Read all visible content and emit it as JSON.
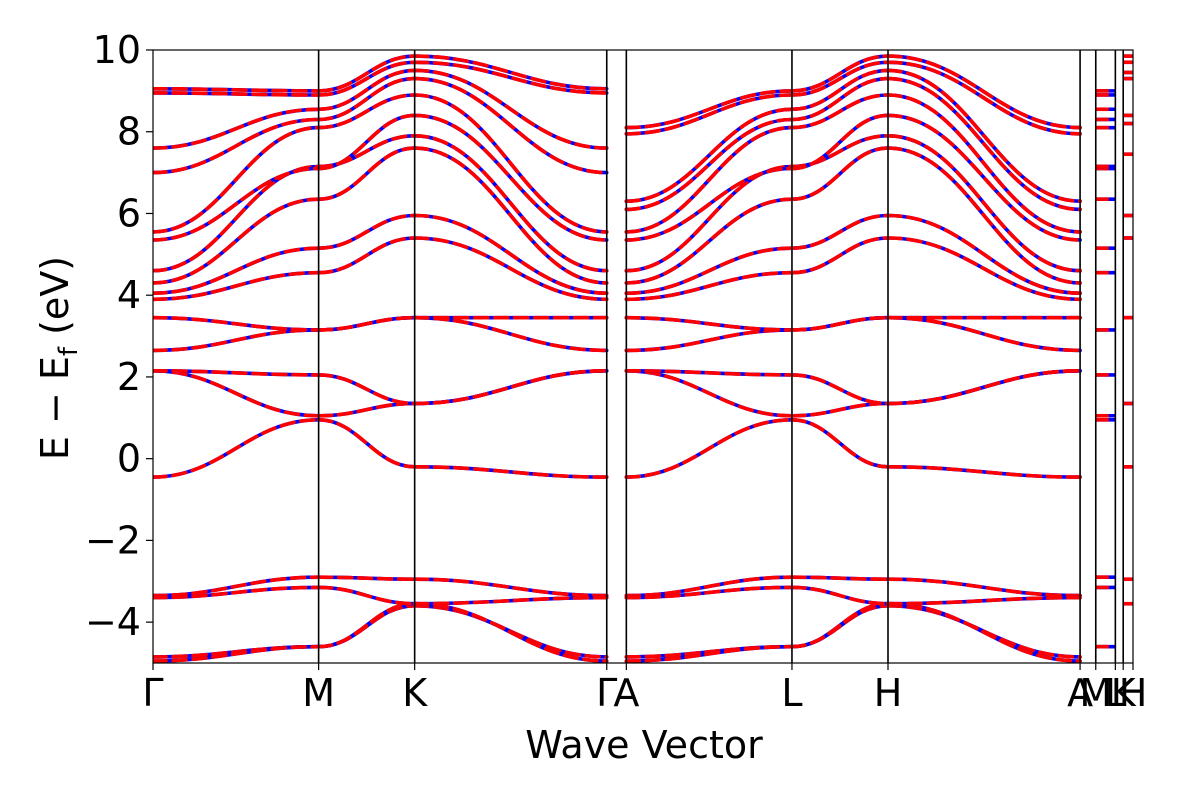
{
  "chart_data": {
    "type": "line",
    "title": "",
    "xlabel": "Wave Vector",
    "ylabel_main": "E − E",
    "ylabel_sub": "f",
    "ylabel_suffix": " (eV)",
    "ylim": [
      -5,
      10
    ],
    "yticks": [
      -4,
      -2,
      0,
      2,
      4,
      6,
      8,
      10
    ],
    "ytick_labels": [
      "−4",
      "−2",
      "0",
      "2",
      "4",
      "6",
      "8",
      "10"
    ],
    "xlim": [
      0,
      10
    ],
    "kpoints": [
      {
        "label": "Γ",
        "x": 0.0
      },
      {
        "label": "M",
        "x": 1.69
      },
      {
        "label": "K",
        "x": 2.67
      },
      {
        "label": "Γ",
        "x": 4.63
      },
      {
        "label": "A",
        "x": 4.83
      },
      {
        "label": "L",
        "x": 6.52
      },
      {
        "label": "H",
        "x": 7.5
      },
      {
        "label": "A",
        "x": 9.46
      },
      {
        "label": "M",
        "x": 9.62
      },
      {
        "label": "L",
        "x": 9.82
      },
      {
        "label": "K",
        "x": 9.9
      },
      {
        "label": "H",
        "x": 10.0
      }
    ],
    "grid": false,
    "legend": "none",
    "series_styles": [
      {
        "name": "Band structure (solid)",
        "color": "#0000ff",
        "dash": "solid"
      },
      {
        "name": "Band structure (dashed)",
        "color": "#ff0000",
        "dash": "dashed"
      }
    ],
    "segments": [
      {
        "from": "Γ",
        "to": "M",
        "x": [
          0.0,
          1.69
        ],
        "bands": [
          [
            -4.85,
            -4.6
          ],
          [
            -4.95,
            -4.6
          ],
          [
            -3.35,
            -2.9
          ],
          [
            -3.4,
            -3.15
          ],
          [
            -0.45,
            0.95
          ],
          [
            2.15,
            1.05
          ],
          [
            2.15,
            2.05
          ],
          [
            2.65,
            3.15
          ],
          [
            3.45,
            3.15
          ],
          [
            3.9,
            4.55
          ],
          [
            4.05,
            5.15
          ],
          [
            4.3,
            6.35
          ],
          [
            4.6,
            7.15
          ],
          [
            5.35,
            7.1
          ],
          [
            5.55,
            8.1
          ],
          [
            7.0,
            8.3
          ],
          [
            7.6,
            8.55
          ],
          [
            8.95,
            8.9
          ],
          [
            9.05,
            9.0
          ]
        ]
      },
      {
        "from": "M",
        "to": "K",
        "x": [
          1.69,
          2.67
        ],
        "bands": [
          [
            -4.6,
            -3.6
          ],
          [
            -4.6,
            -3.55
          ],
          [
            -2.9,
            -2.95
          ],
          [
            -3.15,
            -3.55
          ],
          [
            0.95,
            -0.2
          ],
          [
            1.05,
            1.35
          ],
          [
            2.05,
            1.35
          ],
          [
            3.15,
            3.45
          ],
          [
            3.15,
            3.45
          ],
          [
            4.55,
            5.4
          ],
          [
            5.15,
            5.95
          ],
          [
            6.35,
            7.6
          ],
          [
            7.15,
            7.9
          ],
          [
            7.1,
            8.4
          ],
          [
            8.1,
            8.9
          ],
          [
            8.3,
            9.3
          ],
          [
            8.55,
            9.5
          ],
          [
            8.9,
            9.7
          ],
          [
            9.0,
            9.85
          ]
        ]
      },
      {
        "from": "K",
        "to": "Γ",
        "x": [
          2.67,
          4.63
        ],
        "bands": [
          [
            -3.6,
            -4.85
          ],
          [
            -3.55,
            -4.95
          ],
          [
            -2.95,
            -3.35
          ],
          [
            -3.55,
            -3.4
          ],
          [
            -0.2,
            -0.45
          ],
          [
            1.35,
            2.15
          ],
          [
            1.35,
            2.15
          ],
          [
            3.45,
            2.65
          ],
          [
            3.45,
            3.45
          ],
          [
            5.4,
            3.9
          ],
          [
            5.95,
            4.05
          ],
          [
            7.6,
            4.3
          ],
          [
            7.9,
            4.6
          ],
          [
            8.4,
            5.35
          ],
          [
            8.9,
            5.55
          ],
          [
            9.3,
            7.0
          ],
          [
            9.5,
            7.6
          ],
          [
            9.7,
            8.95
          ],
          [
            9.85,
            9.05
          ]
        ]
      },
      {
        "from": "A",
        "to": "L",
        "x": [
          4.83,
          6.52
        ],
        "bands": [
          [
            -4.85,
            -4.6
          ],
          [
            -4.95,
            -4.6
          ],
          [
            -3.35,
            -2.9
          ],
          [
            -3.4,
            -3.15
          ],
          [
            -0.45,
            0.95
          ],
          [
            2.15,
            1.05
          ],
          [
            2.15,
            2.05
          ],
          [
            2.65,
            3.15
          ],
          [
            3.45,
            3.15
          ],
          [
            3.9,
            4.55
          ],
          [
            4.05,
            5.15
          ],
          [
            4.3,
            6.35
          ],
          [
            4.6,
            7.15
          ],
          [
            5.35,
            7.1
          ],
          [
            5.55,
            8.1
          ],
          [
            6.1,
            8.3
          ],
          [
            6.3,
            8.55
          ],
          [
            7.95,
            8.9
          ],
          [
            8.1,
            9.0
          ]
        ]
      },
      {
        "from": "L",
        "to": "H",
        "x": [
          6.52,
          7.5
        ],
        "bands": [
          [
            -4.6,
            -3.6
          ],
          [
            -4.6,
            -3.55
          ],
          [
            -2.9,
            -2.95
          ],
          [
            -3.15,
            -3.55
          ],
          [
            0.95,
            -0.2
          ],
          [
            1.05,
            1.35
          ],
          [
            2.05,
            1.35
          ],
          [
            3.15,
            3.45
          ],
          [
            3.15,
            3.45
          ],
          [
            4.55,
            5.4
          ],
          [
            5.15,
            5.95
          ],
          [
            6.35,
            7.6
          ],
          [
            7.15,
            7.9
          ],
          [
            7.1,
            8.4
          ],
          [
            8.1,
            8.9
          ],
          [
            8.3,
            9.3
          ],
          [
            8.55,
            9.5
          ],
          [
            8.9,
            9.7
          ],
          [
            9.0,
            9.85
          ]
        ]
      },
      {
        "from": "H",
        "to": "A",
        "x": [
          7.5,
          9.46
        ],
        "bands": [
          [
            -3.6,
            -4.85
          ],
          [
            -3.55,
            -4.95
          ],
          [
            -2.95,
            -3.35
          ],
          [
            -3.55,
            -3.4
          ],
          [
            -0.2,
            -0.45
          ],
          [
            1.35,
            2.15
          ],
          [
            1.35,
            2.15
          ],
          [
            3.45,
            2.65
          ],
          [
            3.45,
            3.45
          ],
          [
            5.4,
            3.9
          ],
          [
            5.95,
            4.05
          ],
          [
            7.6,
            4.3
          ],
          [
            7.9,
            4.6
          ],
          [
            8.4,
            5.35
          ],
          [
            8.9,
            5.55
          ],
          [
            9.3,
            6.1
          ],
          [
            9.5,
            6.3
          ],
          [
            9.7,
            7.95
          ],
          [
            9.85,
            8.1
          ]
        ]
      }
    ],
    "flat_levels": [
      {
        "x": [
          9.62,
          9.82
        ],
        "levels": [
          -4.6,
          -3.15,
          -2.9,
          0.95,
          1.05,
          2.05,
          3.15,
          4.55,
          5.15,
          6.35,
          7.1,
          7.15,
          8.1,
          8.3,
          8.55,
          8.9,
          9.0
        ]
      },
      {
        "x": [
          9.9,
          10.0
        ],
        "levels": [
          -3.55,
          -2.95,
          -0.2,
          1.35,
          3.45,
          5.4,
          5.95,
          7.45,
          8.2,
          8.4,
          9.3,
          9.45,
          9.7,
          9.85
        ]
      }
    ]
  }
}
